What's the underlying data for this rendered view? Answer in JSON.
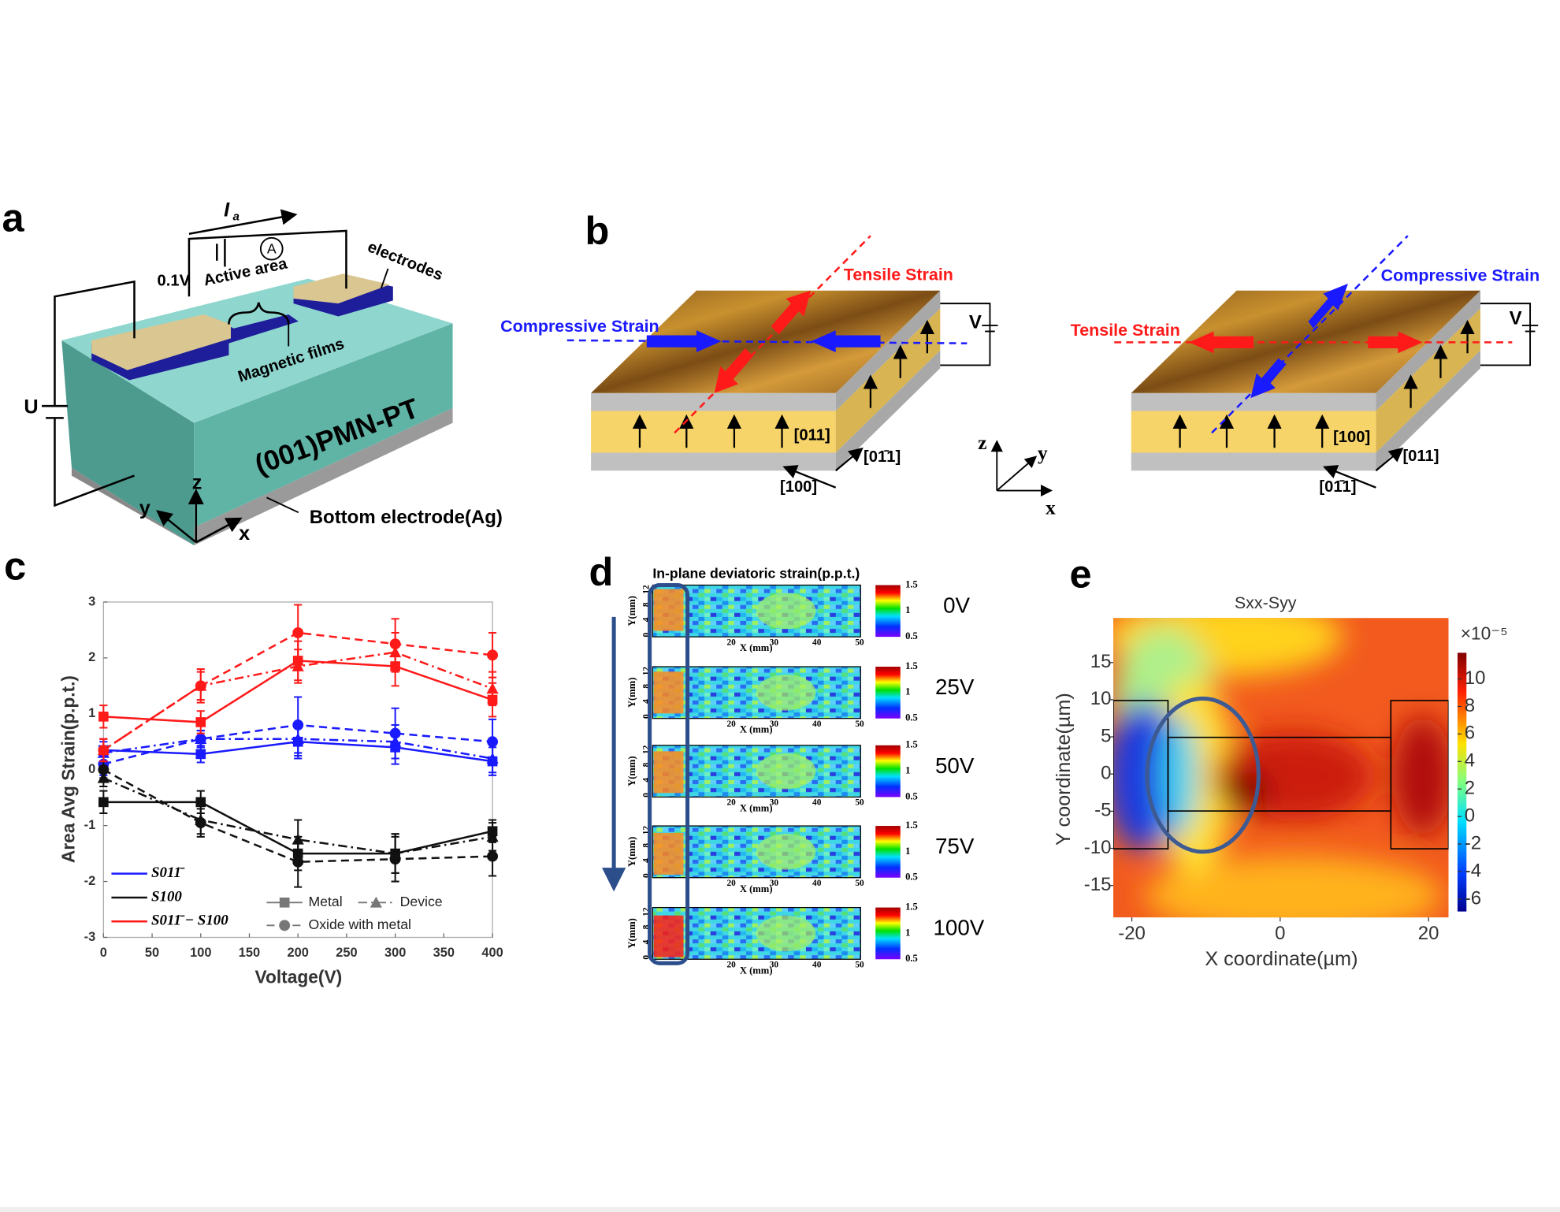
{
  "panel_a": {
    "label": "a",
    "current": "I",
    "current_sub": "a",
    "voltage": "0.1V",
    "ammeter": "A",
    "active_area": "Active area",
    "electrodes": "electrodes",
    "films": "Magnetic films",
    "source": "U",
    "substrate": "(001)PMN-PT",
    "axis_z": "z",
    "axis_y": "y",
    "axis_x": "x",
    "bottom": "Bottom electrode(Ag)"
  },
  "panel_b": {
    "label": "b",
    "left": {
      "tensile": "Tensile Strain",
      "compressive": "Compressive Strain",
      "voltage": "V",
      "dir_side": "[011]",
      "dir_right": "[01̄1]",
      "dir_front": "[100]"
    },
    "right": {
      "tensile": "Tensile Strain",
      "compressive": "Compressive Strain",
      "voltage": "V",
      "dir_side": "[100]",
      "dir_right": "[011]",
      "dir_front": "[01̄1]"
    },
    "axes": {
      "z": "z",
      "y": "y",
      "x": "x"
    }
  },
  "chart_data": {
    "type": "line",
    "panel_label": "c",
    "x_label": "Voltage(V)",
    "y_label": "Area Avg Strain(p.p.t.)",
    "x": [
      0,
      100,
      200,
      300,
      400
    ],
    "xlim": [
      0,
      400
    ],
    "xticks": [
      0,
      50,
      100,
      150,
      200,
      250,
      300,
      350,
      400
    ],
    "ylim": [
      -3,
      3
    ],
    "yticks": [
      -3,
      -2,
      -1,
      0,
      1,
      2,
      3
    ],
    "groups": [
      {
        "name": "S011̄",
        "color": "#1a1aff"
      },
      {
        "name": "S100",
        "color": "#111111"
      },
      {
        "name": "S011̄ − S100",
        "color": "#ff1a1a"
      }
    ],
    "styles": [
      {
        "name": "Metal",
        "dash": "none",
        "marker": "square"
      },
      {
        "name": "Device",
        "dash": "9 4 2 4",
        "marker": "triangle"
      },
      {
        "name": "Oxide with metal",
        "dash": "8 5",
        "marker": "circle"
      }
    ],
    "series": [
      {
        "group": 0,
        "style": 0,
        "values": [
          0.35,
          0.28,
          0.5,
          0.4,
          0.15
        ],
        "errors": [
          0.2,
          0.15,
          0.3,
          0.3,
          0.25
        ]
      },
      {
        "group": 0,
        "style": 1,
        "values": [
          0.3,
          0.55,
          0.55,
          0.5,
          0.2
        ],
        "errors": [
          0.2,
          0.15,
          0.3,
          0.3,
          0.25
        ]
      },
      {
        "group": 0,
        "style": 2,
        "values": [
          0.1,
          0.55,
          0.8,
          0.65,
          0.5
        ],
        "errors": [
          0.2,
          0.15,
          0.5,
          0.45,
          0.4
        ]
      },
      {
        "group": 1,
        "style": 0,
        "values": [
          -0.58,
          -0.58,
          -1.5,
          -1.5,
          -1.1
        ],
        "errors": [
          0.2,
          0.2,
          0.3,
          0.35,
          0.2
        ]
      },
      {
        "group": 1,
        "style": 1,
        "values": [
          -0.15,
          -0.9,
          -1.25,
          -1.5,
          -1.2
        ],
        "errors": [
          0.15,
          0.25,
          0.35,
          0.35,
          0.25
        ]
      },
      {
        "group": 1,
        "style": 2,
        "values": [
          0.0,
          -0.95,
          -1.65,
          -1.6,
          -1.55
        ],
        "errors": [
          0.15,
          0.25,
          0.45,
          0.4,
          0.35
        ]
      },
      {
        "group": 2,
        "style": 0,
        "values": [
          0.95,
          0.85,
          1.95,
          1.85,
          1.25
        ],
        "errors": [
          0.2,
          0.2,
          0.35,
          0.35,
          0.3
        ]
      },
      {
        "group": 2,
        "style": 1,
        "values": [
          0.35,
          1.5,
          1.85,
          2.1,
          1.45
        ],
        "errors": [
          0.2,
          0.25,
          0.3,
          0.35,
          0.3
        ]
      },
      {
        "group": 2,
        "style": 2,
        "values": [
          0.35,
          1.5,
          2.45,
          2.25,
          2.05
        ],
        "errors": [
          0.2,
          0.3,
          0.5,
          0.45,
          0.4
        ]
      }
    ]
  },
  "panel_d": {
    "label": "d",
    "title": "In-plane deviatoric strain(p.p.t.)",
    "voltages": [
      "0V",
      "25V",
      "50V",
      "75V",
      "100V"
    ],
    "colorbar_ticks": [
      1.5,
      1,
      0.5
    ],
    "y_ticks": [
      0,
      4,
      8,
      12
    ],
    "x_ticks": [
      20,
      30,
      40,
      50
    ],
    "y_label": "Y(mm)",
    "x_label": "X (mm)"
  },
  "panel_e": {
    "label": "e",
    "title": "Sxx-Syy",
    "multiplier": "×10⁻⁵",
    "x_label": "X coordinate(µm)",
    "y_label": "Y coordinate(µm)",
    "xlim": [
      -22.5,
      22.7
    ],
    "ylim": [
      -19.3,
      21
    ],
    "xticks": [
      -20,
      0,
      20
    ],
    "yticks": [
      -15,
      -10,
      -5,
      0,
      5,
      10,
      15
    ],
    "colorbar_lim": [
      -6.9,
      11.9
    ],
    "colorbar_ticks": [
      -6,
      -4,
      -2,
      0,
      2,
      4,
      6,
      8,
      10
    ]
  }
}
